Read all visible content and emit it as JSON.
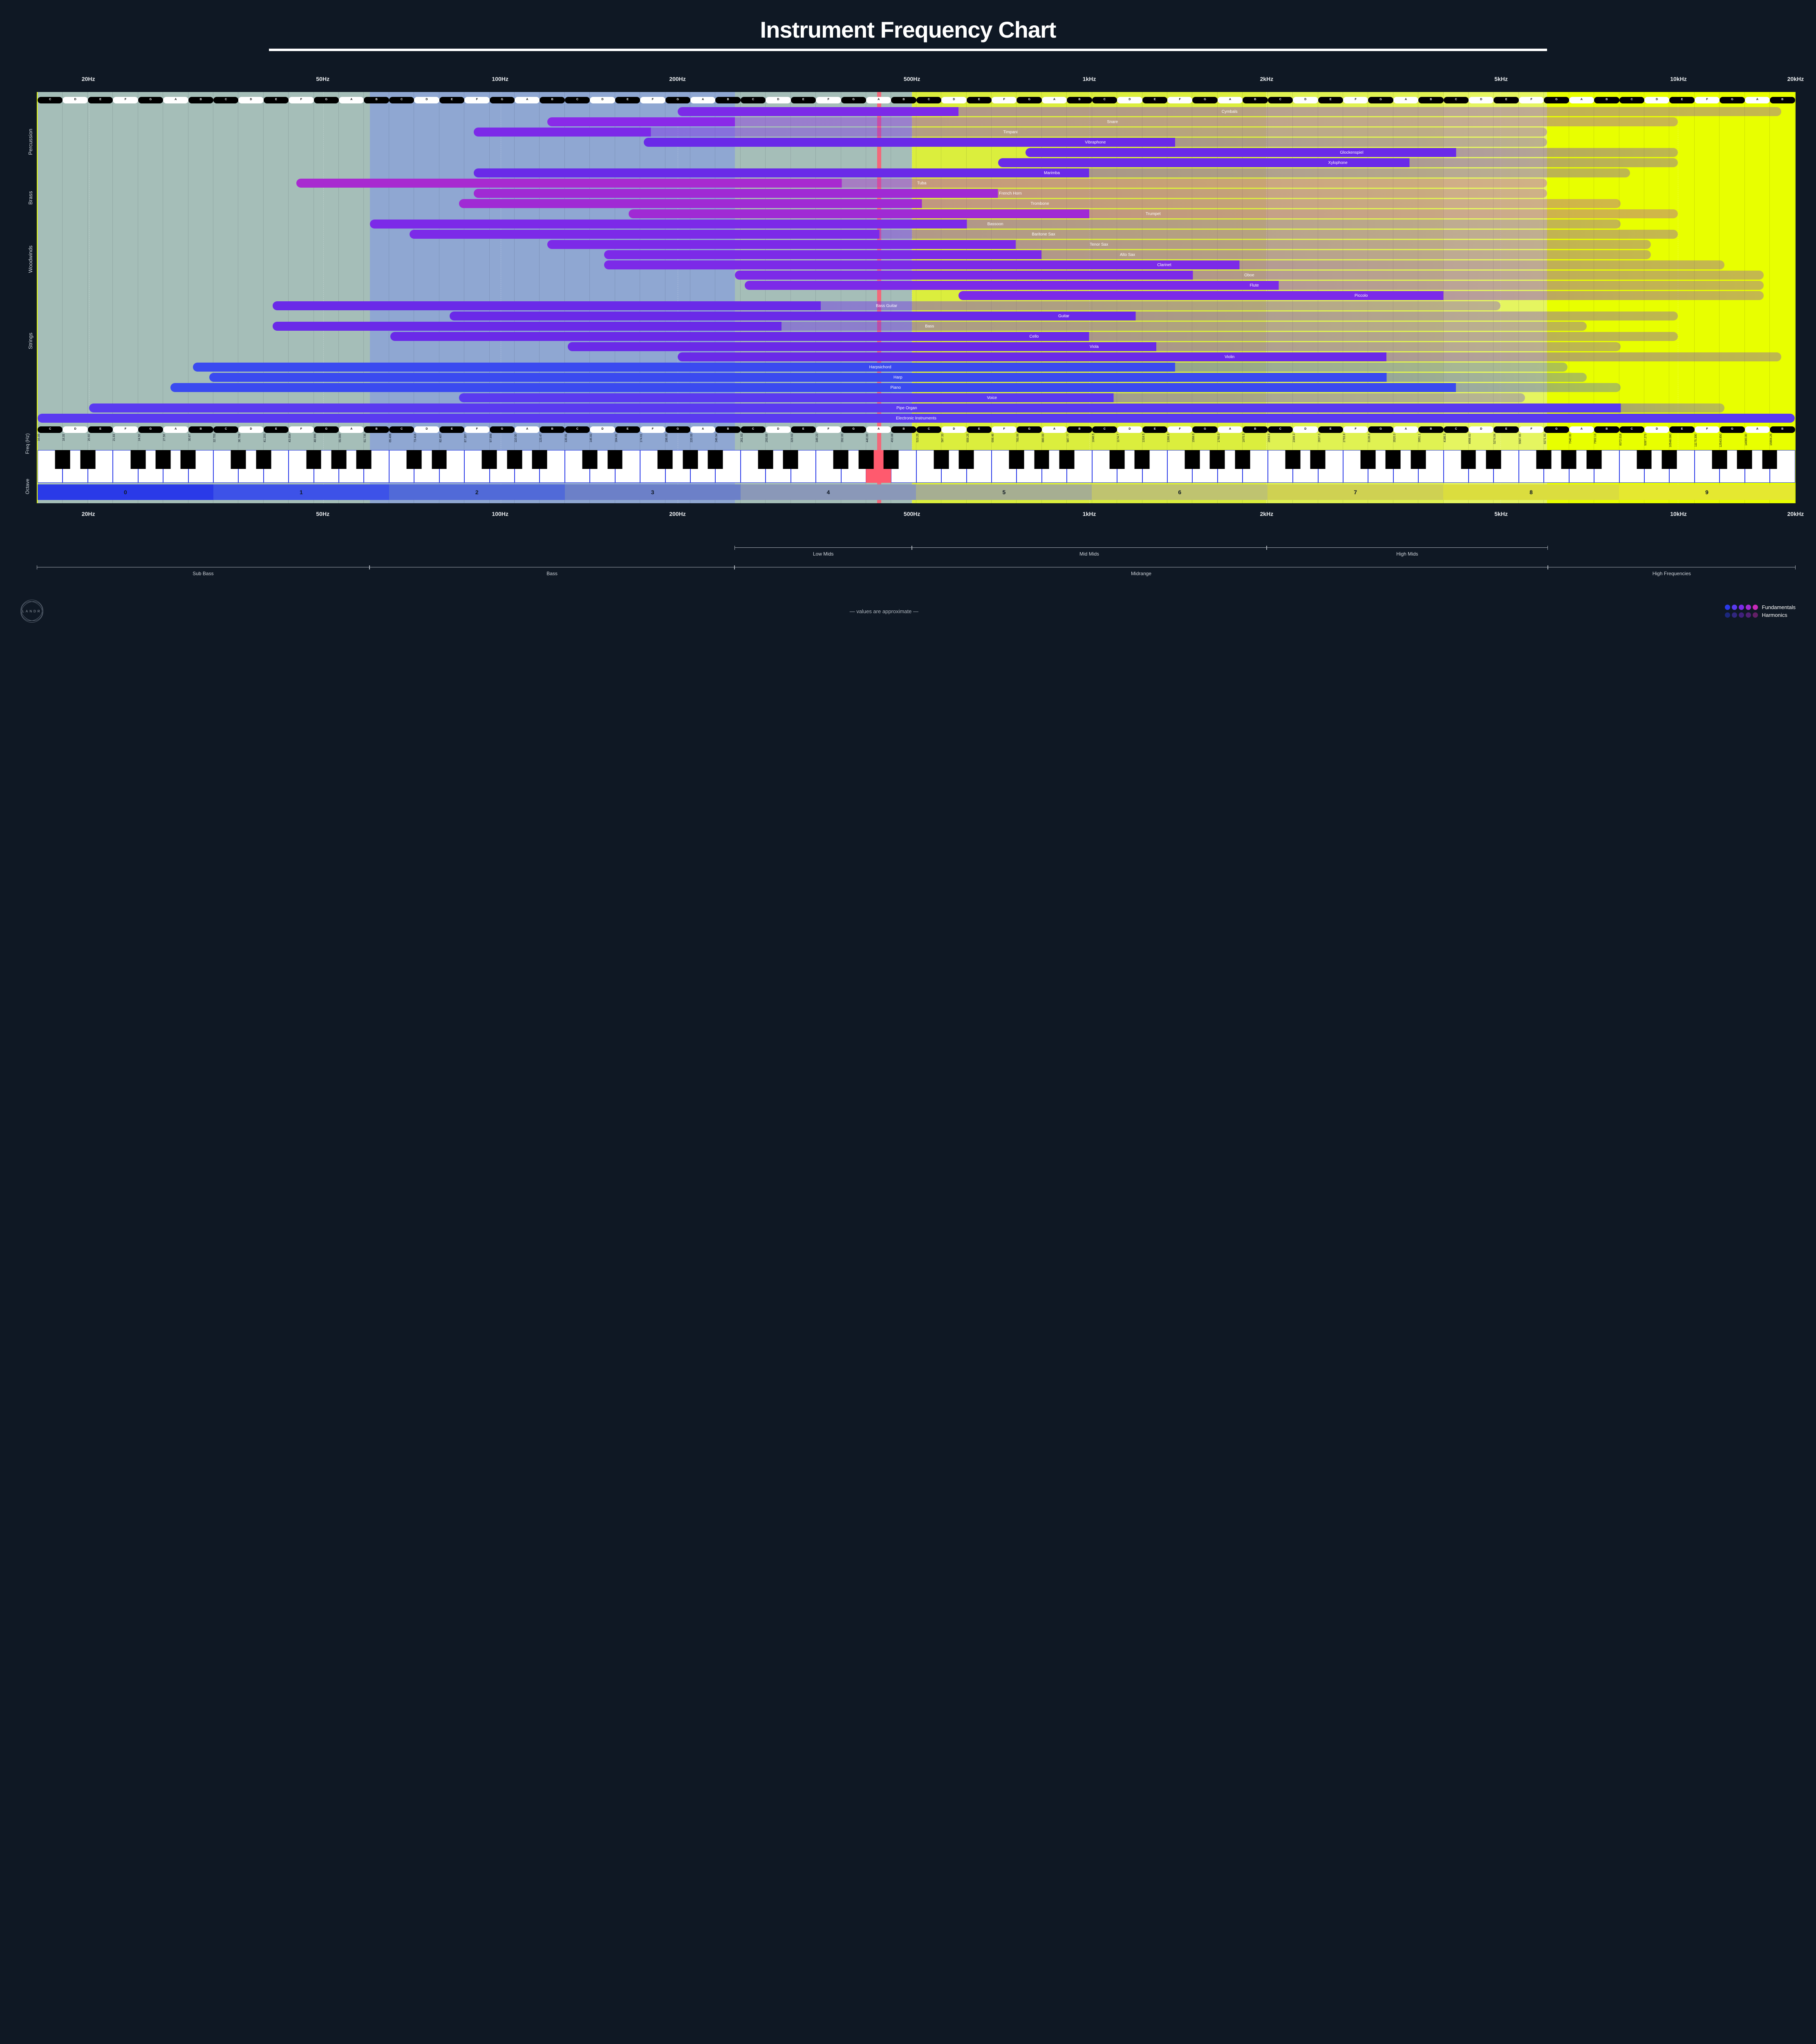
{
  "title": "Instrument Frequency Chart",
  "log_min_hz": 16.35,
  "log_max_hz": 15804.26,
  "freq_ticks": [
    {
      "hz": 20,
      "label": "20Hz"
    },
    {
      "hz": 50,
      "label": "50Hz"
    },
    {
      "hz": 100,
      "label": "100Hz"
    },
    {
      "hz": 200,
      "label": "200Hz"
    },
    {
      "hz": 500,
      "label": "500Hz"
    },
    {
      "hz": 1000,
      "label": "1kHz"
    },
    {
      "hz": 2000,
      "label": "2kHz"
    },
    {
      "hz": 5000,
      "label": "5kHz"
    },
    {
      "hz": 10000,
      "label": "10kHz"
    },
    {
      "hz": 20000,
      "label": "20kHz"
    }
  ],
  "a440_hz": 440.0,
  "bg_bands": [
    {
      "from_hz": 16.35,
      "to_hz": 500,
      "color": "#8fa8f5",
      "opacity": 0.75
    },
    {
      "from_hz": 60,
      "to_hz": 250,
      "color": "#7d93e8",
      "opacity": 0.55
    },
    {
      "from_hz": 500,
      "to_hz": 2000,
      "color": "#cfe070",
      "opacity": 0.55
    },
    {
      "from_hz": 2000,
      "to_hz": 4000,
      "color": "#d9e896",
      "opacity": 0.55
    },
    {
      "from_hz": 4000,
      "to_hz": 6000,
      "color": "#e1edae",
      "opacity": 0.55
    }
  ],
  "categories": [
    {
      "name": "Percussion",
      "from_row": 0,
      "to_row": 6
    },
    {
      "name": "Brass",
      "from_row": 7,
      "to_row": 10
    },
    {
      "name": "Woodwinds",
      "from_row": 11,
      "to_row": 18
    },
    {
      "name": "Strings",
      "from_row": 19,
      "to_row": 26
    }
  ],
  "instruments": [
    {
      "name": "Cymbals",
      "f_lo": 200,
      "f_hi": 600,
      "h_hi": 15000,
      "color": "#7c2ae8"
    },
    {
      "name": "Snare",
      "f_lo": 120,
      "f_hi": 250,
      "h_hi": 10000,
      "color": "#8a2ae8"
    },
    {
      "name": "Timpani",
      "f_lo": 90,
      "f_hi": 180,
      "h_hi": 6000,
      "color": "#7c2ae8"
    },
    {
      "name": "Vibraphone",
      "f_lo": 175,
      "f_hi": 1400,
      "h_hi": 6000,
      "color": "#6a2ae8"
    },
    {
      "name": "Glockenspiel",
      "f_lo": 780,
      "f_hi": 4200,
      "h_hi": 10000,
      "color": "#6a2ae8"
    },
    {
      "name": "Xylophone",
      "f_lo": 700,
      "f_hi": 3500,
      "h_hi": 10000,
      "color": "#6a2ae8"
    },
    {
      "name": "Marimba",
      "f_lo": 90,
      "f_hi": 1000,
      "h_hi": 8300,
      "color": "#6a2ae8"
    },
    {
      "name": "Tuba",
      "f_lo": 45,
      "f_hi": 380,
      "h_hi": 6000,
      "color": "#a82ad0"
    },
    {
      "name": "French Horn",
      "f_lo": 90,
      "f_hi": 700,
      "h_hi": 6000,
      "color": "#a02ad4"
    },
    {
      "name": "Trombone",
      "f_lo": 85,
      "f_hi": 520,
      "h_hi": 8000,
      "color": "#a02ad4"
    },
    {
      "name": "Trumpet",
      "f_lo": 165,
      "f_hi": 1000,
      "h_hi": 10000,
      "color": "#a02ad4"
    },
    {
      "name": "Bassoon",
      "f_lo": 60,
      "f_hi": 620,
      "h_hi": 8000,
      "color": "#7c2ae8"
    },
    {
      "name": "Baritone Sax",
      "f_lo": 70,
      "f_hi": 440,
      "h_hi": 10000,
      "color": "#7c2ae8"
    },
    {
      "name": "Tenor Sax",
      "f_lo": 120,
      "f_hi": 750,
      "h_hi": 9000,
      "color": "#7c2ae8"
    },
    {
      "name": "Alto Sax",
      "f_lo": 150,
      "f_hi": 830,
      "h_hi": 9000,
      "color": "#7c2ae8"
    },
    {
      "name": "Clarinet",
      "f_lo": 150,
      "f_hi": 1800,
      "h_hi": 12000,
      "color": "#7c2ae8"
    },
    {
      "name": "Oboe",
      "f_lo": 250,
      "f_hi": 1500,
      "h_hi": 14000,
      "color": "#7c2ae8"
    },
    {
      "name": "Flute",
      "f_lo": 260,
      "f_hi": 2100,
      "h_hi": 14000,
      "color": "#7c2ae8"
    },
    {
      "name": "Piccolo",
      "f_lo": 600,
      "f_hi": 4000,
      "h_hi": 14000,
      "color": "#7c2ae8"
    },
    {
      "name": "Bass Guitar",
      "f_lo": 41,
      "f_hi": 350,
      "h_hi": 5000,
      "color": "#6a2ae8"
    },
    {
      "name": "Guitar",
      "f_lo": 82,
      "f_hi": 1200,
      "h_hi": 10000,
      "color": "#6a2ae8"
    },
    {
      "name": "Bass",
      "f_lo": 41,
      "f_hi": 300,
      "h_hi": 7000,
      "color": "#6a2ae8"
    },
    {
      "name": "Cello",
      "f_lo": 65,
      "f_hi": 1000,
      "h_hi": 10000,
      "color": "#6a2ae8"
    },
    {
      "name": "Viola",
      "f_lo": 130,
      "f_hi": 1300,
      "h_hi": 8000,
      "color": "#6a2ae8"
    },
    {
      "name": "Violin",
      "f_lo": 200,
      "f_hi": 3200,
      "h_hi": 15000,
      "color": "#6a2ae8"
    },
    {
      "name": "Harpsichord",
      "f_lo": 30,
      "f_hi": 1400,
      "h_hi": 6500,
      "color": "#3a4af0"
    },
    {
      "name": "Harp",
      "f_lo": 32,
      "f_hi": 3200,
      "h_hi": 7000,
      "color": "#3a4af0"
    },
    {
      "name": "Piano",
      "f_lo": 27.5,
      "f_hi": 4200,
      "h_hi": 8000,
      "color": "#3a4af0"
    },
    {
      "name": "Voice",
      "f_lo": 85,
      "f_hi": 1100,
      "h_hi": 5500,
      "color": "#5a3af0"
    },
    {
      "name": "Pipe Organ",
      "f_lo": 20,
      "f_hi": 8000,
      "h_hi": 12000,
      "color": "#5a3af0"
    },
    {
      "name": "Electronic Instruments",
      "f_lo": 16.35,
      "f_hi": 15804,
      "h_hi": 15804,
      "color": "#5a3af0"
    }
  ],
  "note_names": [
    "C",
    "D",
    "E",
    "F",
    "G",
    "A",
    "B"
  ],
  "note_colors": {
    "white_bg": "#ffffff",
    "white_fg": "#000000",
    "black_bg": "#000000",
    "black_fg": "#ffffff"
  },
  "freq_hz_label": "Freq (Hz)",
  "octave_label": "Octave",
  "hz_values": [
    "16.35",
    "18.35",
    "20.60",
    "21.83",
    "24.50",
    "27.50",
    "30.87",
    "32.703",
    "36.708",
    "41.203",
    "43.654",
    "48.999",
    "55.000",
    "61.735",
    "65.406",
    "73.416",
    "82.407",
    "87.307",
    "97.999",
    "110.00",
    "123.47",
    "130.81",
    "146.83",
    "164.81",
    "174.61",
    "196.00",
    "220.00",
    "246.94",
    "261.63",
    "293.66",
    "329.63",
    "349.23",
    "392.00",
    "440.00",
    "493.88",
    "523.25",
    "587.33",
    "659.25",
    "698.46",
    "783.99",
    "880.00",
    "987.77",
    "1046.5",
    "1174.7",
    "1318.5",
    "1396.9",
    "1568.0",
    "1760.0",
    "1975.5",
    "2093.0",
    "2349.3",
    "2637.0",
    "2793.8",
    "3136.0",
    "3520.0",
    "3951.1",
    "4186.0",
    "4698.63",
    "5274.04",
    "5587.65",
    "6271.93",
    "7040.00",
    "7902.13",
    "8372.018",
    "9397.273",
    "10548.080",
    "11175.300",
    "12543.850",
    "14080.00",
    "15804.26"
  ],
  "octaves": [
    {
      "n": "0",
      "color": "#2a3ae8"
    },
    {
      "n": "1",
      "color": "#3d52e8"
    },
    {
      "n": "2",
      "color": "#516ad8"
    },
    {
      "n": "3",
      "color": "#6c80c8"
    },
    {
      "n": "4",
      "color": "#8a98b8"
    },
    {
      "n": "5",
      "color": "#a6ae92"
    },
    {
      "n": "6",
      "color": "#bfc370"
    },
    {
      "n": "7",
      "color": "#cfd152"
    },
    {
      "n": "8",
      "color": "#dbdd3e"
    },
    {
      "n": "9",
      "color": "#e5e830"
    }
  ],
  "range_rows": [
    [
      {
        "label": "Low Mids",
        "from_hz": 250,
        "to_hz": 500
      },
      {
        "label": "Mid Mids",
        "from_hz": 500,
        "to_hz": 2000
      },
      {
        "label": "High Mids",
        "from_hz": 2000,
        "to_hz": 6000
      }
    ],
    [
      {
        "label": "Sub Bass",
        "from_hz": 16.35,
        "to_hz": 60
      },
      {
        "label": "Bass",
        "from_hz": 60,
        "to_hz": 250
      },
      {
        "label": "Midrange",
        "from_hz": 250,
        "to_hz": 6000
      },
      {
        "label": "High Frequencies",
        "from_hz": 6000,
        "to_hz": 15804
      }
    ]
  ],
  "footnote": "— values are approximate —",
  "legend": {
    "fundamentals": {
      "label": "Fundamentals",
      "colors": [
        "#2a3ae8",
        "#5a3af0",
        "#7c2ae8",
        "#a02ad4",
        "#c82ab8"
      ]
    },
    "harmonics": {
      "label": "Harmonics",
      "colors": [
        "#2a3ae8",
        "#5a3af0",
        "#7c2ae8",
        "#a02ad4",
        "#c82ab8"
      ],
      "opacity": 0.45
    }
  },
  "logo_text": "LANDR"
}
